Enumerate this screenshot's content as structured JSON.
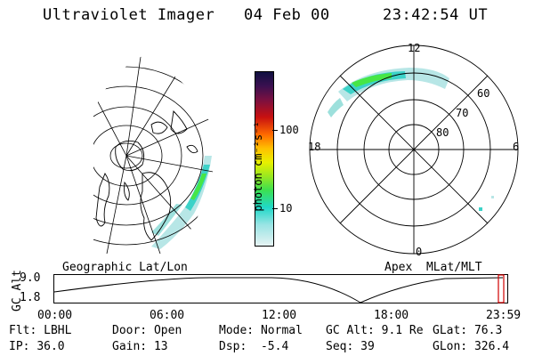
{
  "header": {
    "title": "Ultraviolet Imager",
    "date": "04 Feb 00",
    "time": "23:42:54 UT"
  },
  "colorbar": {
    "unit_label": "photon cm⁻²s⁻¹",
    "ticks": [
      "100",
      "10"
    ]
  },
  "polar_plot": {
    "mlt_labels": [
      "12",
      "18",
      "6",
      "0"
    ],
    "mlat_labels": [
      "60",
      "70",
      "80"
    ]
  },
  "map_labels": {
    "left": "Geographic Lat/Lon",
    "right": "Apex  MLat/MLT"
  },
  "altitude_strip": {
    "axis_label": "GC Alt",
    "y_ticks": [
      "9.0",
      "1.8"
    ],
    "x_ticks": [
      "00:00",
      "06:00",
      "12:00",
      "18:00",
      "23:59"
    ]
  },
  "footer": {
    "filter_label": "Flt:",
    "filter_value": "LBHL",
    "ip_label": "IP:",
    "ip_value": "36.0",
    "door_label": "Door:",
    "door_value": "Open",
    "gain_label": "Gain:",
    "gain_value": "13",
    "mode_label": "Mode:",
    "mode_value": "Normal",
    "dsp_label": "Dsp:",
    "dsp_value": "-5.4",
    "gcalt_label": "GC Alt:",
    "gcalt_value": "9.1 Re",
    "seq_label": "Seq:",
    "seq_value": "39",
    "glat_label": "GLat:",
    "glat_value": "76.3",
    "glon_label": "GLon:",
    "glon_value": "326.4"
  },
  "colors": {
    "aurora_low": "#b7e6e6",
    "aurora_mid": "#3cd2c8",
    "aurora_high": "#46e646"
  }
}
